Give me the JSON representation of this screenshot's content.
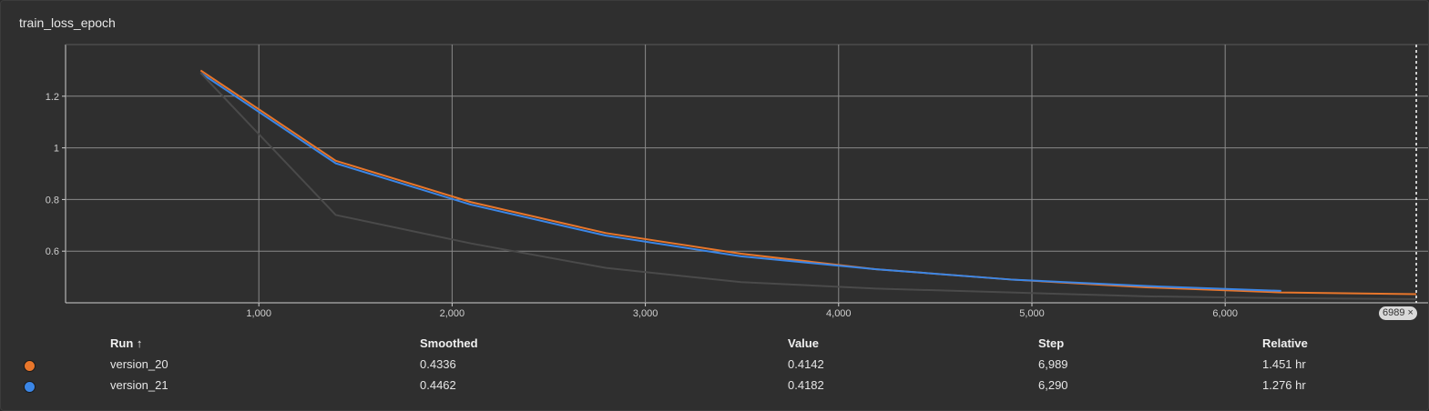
{
  "card": {
    "title": "train_loss_epoch"
  },
  "step_marker": {
    "label": "6989",
    "close": "×"
  },
  "table": {
    "headers": {
      "run": "Run ↑",
      "smoothed": "Smoothed",
      "value": "Value",
      "step": "Step",
      "relative": "Relative"
    },
    "rows": [
      {
        "run": "version_20",
        "smoothed": "0.4336",
        "value": "0.4142",
        "step": "6,989",
        "relative": "1.451 hr",
        "color": "#e8762b"
      },
      {
        "run": "version_21",
        "smoothed": "0.4462",
        "value": "0.4182",
        "step": "6,290",
        "relative": "1.276 hr",
        "color": "#3b86e6"
      }
    ]
  },
  "chart_data": {
    "type": "line",
    "title": "train_loss_epoch",
    "xlabel": "",
    "ylabel": "",
    "xlim": [
      0,
      7050
    ],
    "ylim": [
      0.4,
      1.4
    ],
    "x_ticks": [
      "1,000",
      "2,000",
      "3,000",
      "4,000",
      "5,000",
      "6,000"
    ],
    "y_ticks": [
      "0.6",
      "0.8",
      "1",
      "1.2"
    ],
    "grid": true,
    "marker_step": 6989,
    "series": [
      {
        "name": "version_20",
        "color": "#e8762b",
        "smoothed": [
          [
            699,
            1.3
          ],
          [
            1398,
            0.95
          ],
          [
            2097,
            0.79
          ],
          [
            2796,
            0.67
          ],
          [
            3495,
            0.59
          ],
          [
            4194,
            0.53
          ],
          [
            4893,
            0.49
          ],
          [
            5592,
            0.46
          ],
          [
            6291,
            0.44
          ],
          [
            6989,
            0.4336
          ]
        ]
      },
      {
        "name": "version_21",
        "color": "#3b86e6",
        "smoothed": [
          [
            699,
            1.29
          ],
          [
            1398,
            0.94
          ],
          [
            2097,
            0.78
          ],
          [
            2796,
            0.66
          ],
          [
            3495,
            0.58
          ],
          [
            4194,
            0.53
          ],
          [
            4893,
            0.49
          ],
          [
            5592,
            0.465
          ],
          [
            6290,
            0.4462
          ]
        ]
      },
      {
        "name": "raw",
        "color": "#4a4a4a",
        "values": [
          [
            699,
            1.29
          ],
          [
            1398,
            0.74
          ],
          [
            2097,
            0.63
          ],
          [
            2796,
            0.535
          ],
          [
            3495,
            0.48
          ],
          [
            4194,
            0.455
          ],
          [
            4893,
            0.44
          ],
          [
            5592,
            0.425
          ],
          [
            6291,
            0.418
          ],
          [
            6989,
            0.4142
          ]
        ]
      }
    ]
  }
}
